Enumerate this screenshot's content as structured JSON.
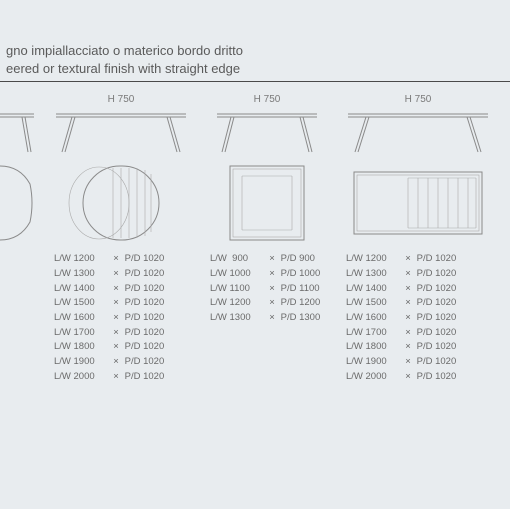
{
  "background_color": "#e8ecef",
  "text_color": "#5a5a5a",
  "stroke_color": "#8a8a8a",
  "title": {
    "line1_it": "gno impiallacciato o materico bordo dritto",
    "line2_en": "eered or textural finish with straight edge"
  },
  "height_label": "H 750",
  "columns": [
    {
      "id": "partial-left",
      "kind": "partial",
      "has_height_label": false,
      "dims": []
    },
    {
      "id": "oval",
      "kind": "oval",
      "has_height_label": true,
      "dims": [
        {
          "lw": "1200",
          "pd": "1020"
        },
        {
          "lw": "1300",
          "pd": "1020"
        },
        {
          "lw": "1400",
          "pd": "1020"
        },
        {
          "lw": "1500",
          "pd": "1020"
        },
        {
          "lw": "1600",
          "pd": "1020"
        },
        {
          "lw": "1700",
          "pd": "1020"
        },
        {
          "lw": "1800",
          "pd": "1020"
        },
        {
          "lw": "1900",
          "pd": "1020"
        },
        {
          "lw": "2000",
          "pd": "1020"
        }
      ]
    },
    {
      "id": "square",
      "kind": "square",
      "has_height_label": true,
      "dims": [
        {
          "lw": "900",
          "pd": "900"
        },
        {
          "lw": "1000",
          "pd": "1000"
        },
        {
          "lw": "1100",
          "pd": "1100"
        },
        {
          "lw": "1200",
          "pd": "1200"
        },
        {
          "lw": "1300",
          "pd": "1300"
        }
      ]
    },
    {
      "id": "rect",
      "kind": "rect",
      "has_height_label": true,
      "dims": [
        {
          "lw": "1200",
          "pd": "1020"
        },
        {
          "lw": "1300",
          "pd": "1020"
        },
        {
          "lw": "1400",
          "pd": "1020"
        },
        {
          "lw": "1500",
          "pd": "1020"
        },
        {
          "lw": "1600",
          "pd": "1020"
        },
        {
          "lw": "1700",
          "pd": "1020"
        },
        {
          "lw": "1800",
          "pd": "1020"
        },
        {
          "lw": "1900",
          "pd": "1020"
        },
        {
          "lw": "2000",
          "pd": "1020"
        }
      ]
    }
  ],
  "labels": {
    "lw": "L/W",
    "pd": "P/D",
    "sep": "×"
  }
}
